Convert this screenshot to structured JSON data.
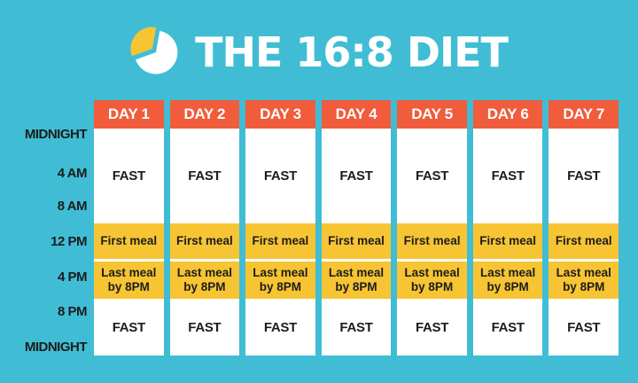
{
  "title": {
    "text": "THE 16:8 DIET",
    "icon": "pie-chart-icon"
  },
  "colors": {
    "background": "#40BDD5",
    "day_header": "#F05C3C",
    "meal_cell": "#F7C433",
    "fast_cell": "#FFFFFF",
    "text_dark": "#1C1C1C",
    "title_text": "#FFFFFF"
  },
  "timeline": {
    "labels": [
      "MIDNIGHT",
      "4 AM",
      "8 AM",
      "12 PM",
      "4 PM",
      "8 PM",
      "MIDNIGHT"
    ]
  },
  "schedule": {
    "days": [
      "DAY 1",
      "DAY 2",
      "DAY 3",
      "DAY 4",
      "DAY 5",
      "DAY 6",
      "DAY 7"
    ],
    "cells": [
      {
        "name": "fast-overnight",
        "type": "fast",
        "lines": [
          "FAST"
        ]
      },
      {
        "name": "first-meal",
        "type": "meal",
        "lines": [
          "First meal"
        ]
      },
      {
        "name": "last-meal",
        "type": "meal",
        "lines": [
          "Last meal",
          "by 8PM"
        ]
      },
      {
        "name": "fast-evening",
        "type": "fast",
        "lines": [
          "FAST"
        ]
      }
    ]
  }
}
